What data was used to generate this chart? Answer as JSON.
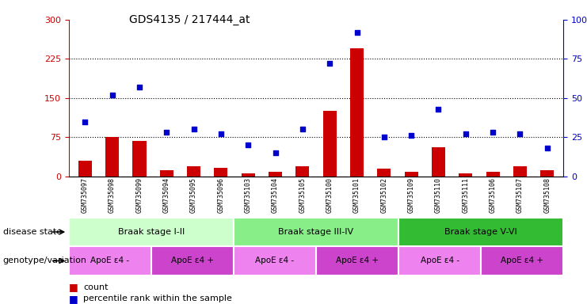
{
  "title": "GDS4135 / 217444_at",
  "samples": [
    "GSM735097",
    "GSM735098",
    "GSM735099",
    "GSM735094",
    "GSM735095",
    "GSM735096",
    "GSM735103",
    "GSM735104",
    "GSM735105",
    "GSM735100",
    "GSM735101",
    "GSM735102",
    "GSM735109",
    "GSM735110",
    "GSM735111",
    "GSM735106",
    "GSM735107",
    "GSM735108"
  ],
  "counts": [
    30,
    75,
    68,
    12,
    20,
    17,
    5,
    8,
    20,
    125,
    245,
    15,
    8,
    55,
    5,
    8,
    20,
    12
  ],
  "percentiles": [
    35,
    52,
    57,
    28,
    30,
    27,
    20,
    15,
    30,
    72,
    92,
    25,
    26,
    43,
    27,
    28,
    27,
    18
  ],
  "left_ylim": [
    0,
    300
  ],
  "right_ylim": [
    0,
    100
  ],
  "left_yticks": [
    0,
    75,
    150,
    225,
    300
  ],
  "right_yticks": [
    0,
    25,
    50,
    75,
    100
  ],
  "right_yticklabels": [
    "0",
    "25",
    "50",
    "75",
    "100%"
  ],
  "bar_color": "#cc0000",
  "scatter_color": "#0000cc",
  "grid_color": "#000000",
  "disease_stages": [
    {
      "label": "Braak stage I-II",
      "start": 0,
      "end": 6,
      "color": "#ccffcc"
    },
    {
      "label": "Braak stage III-IV",
      "start": 6,
      "end": 12,
      "color": "#88ee88"
    },
    {
      "label": "Braak stage V-VI",
      "start": 12,
      "end": 18,
      "color": "#33bb33"
    }
  ],
  "genotype_groups": [
    {
      "label": "ApoE ε4 -",
      "start": 0,
      "end": 3,
      "color": "#ee82ee"
    },
    {
      "label": "ApoE ε4 +",
      "start": 3,
      "end": 6,
      "color": "#cc44cc"
    },
    {
      "label": "ApoE ε4 -",
      "start": 6,
      "end": 9,
      "color": "#ee82ee"
    },
    {
      "label": "ApoE ε4 +",
      "start": 9,
      "end": 12,
      "color": "#cc44cc"
    },
    {
      "label": "ApoE ε4 -",
      "start": 12,
      "end": 15,
      "color": "#ee82ee"
    },
    {
      "label": "ApoE ε4 +",
      "start": 15,
      "end": 18,
      "color": "#cc44cc"
    }
  ],
  "label_disease": "disease state",
  "label_genotype": "genotype/variation",
  "legend_count": "count",
  "legend_pct": "percentile rank within the sample",
  "bg_color": "#ffffff",
  "tick_bg": "#cccccc"
}
